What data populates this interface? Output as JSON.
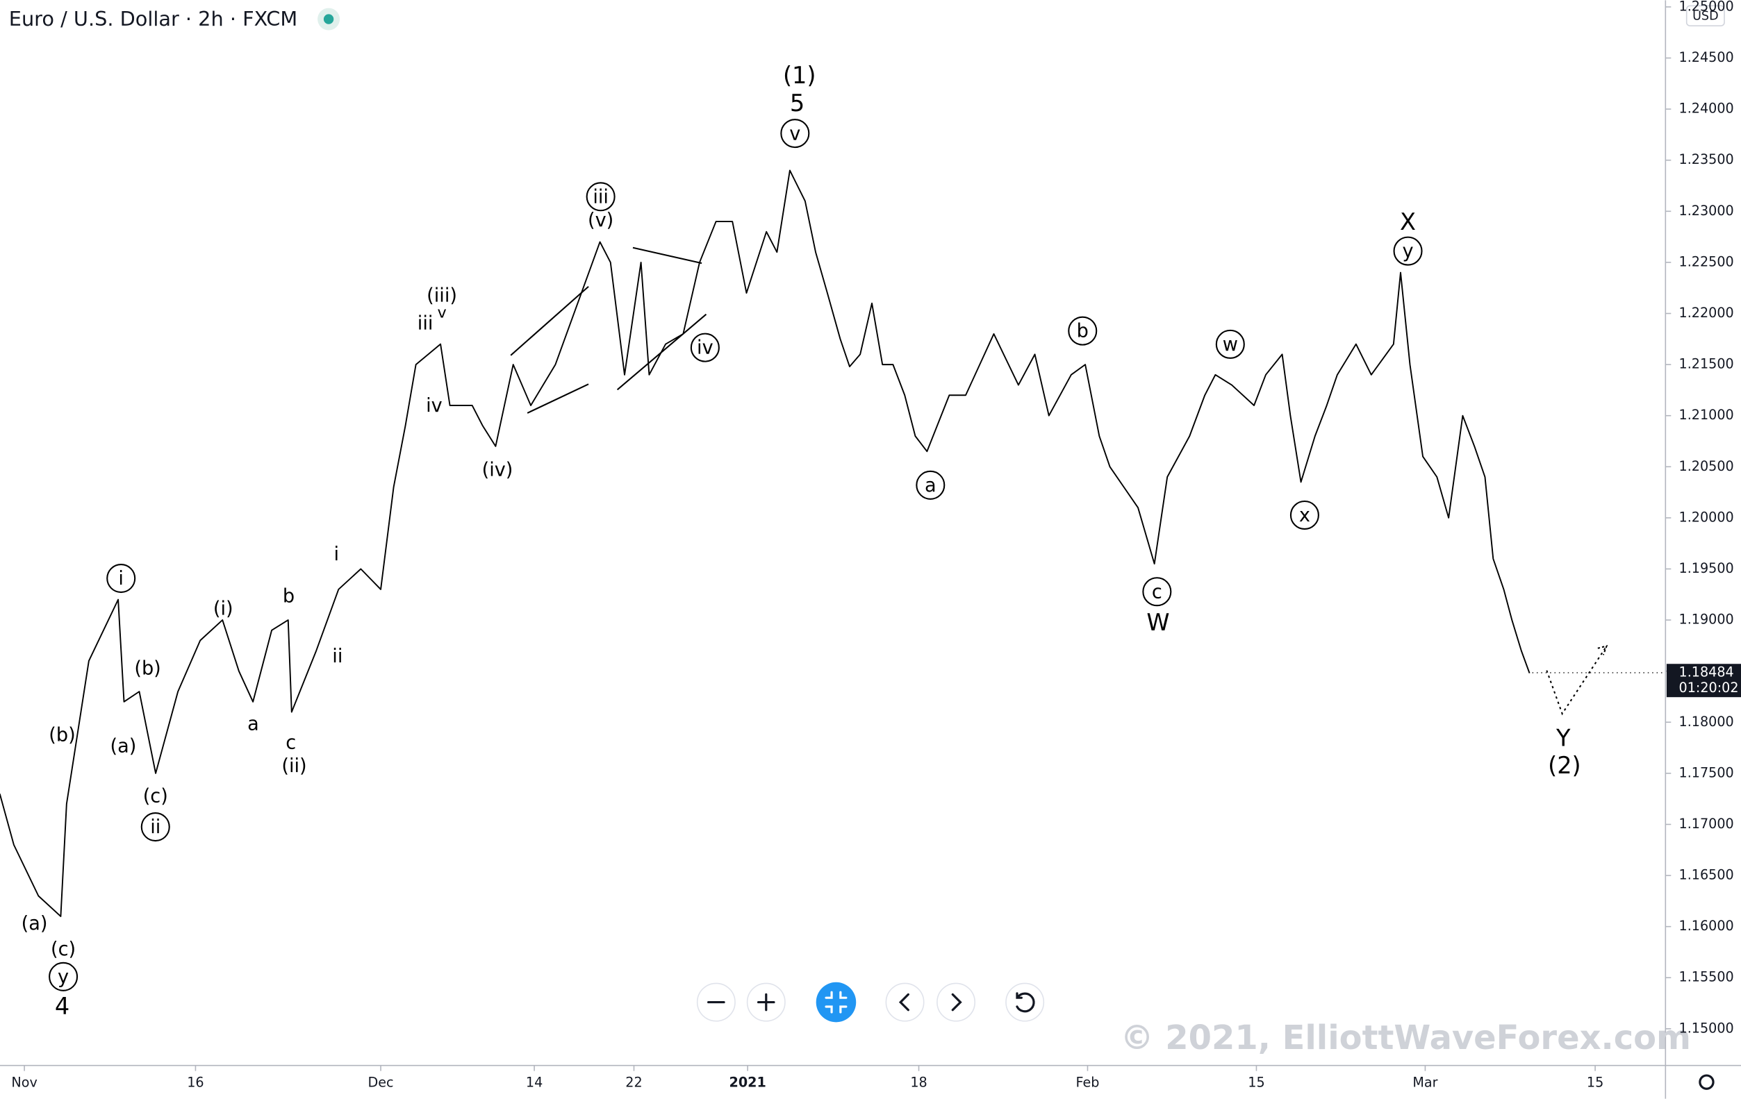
{
  "header": {
    "title": "Euro / U.S. Dollar · 2h · FXCM",
    "currency": "USD"
  },
  "chart_data": {
    "type": "line",
    "x": [
      -1.1,
      0.1,
      2.2,
      4.1,
      4.6,
      6.5,
      9.0,
      9.5,
      10.8,
      12.2,
      14.1,
      16.0,
      17.9,
      19.3,
      20.5,
      22.1,
      23.5,
      23.8,
      25.9,
      27.8,
      29.7,
      31.4,
      32.5,
      33.5,
      34.4,
      36.5,
      37.3,
      39.2,
      40.1,
      41.2,
      42.7,
      44.2,
      46.3,
      48.2,
      50.1,
      51.0,
      52.2,
      53.6,
      54.3,
      55.7,
      57.2,
      58.6,
      60.0,
      61.4,
      62.6,
      64.3,
      65.2,
      66.3,
      67.6,
      68.5,
      69.5,
      70.6,
      71.4,
      72.3,
      73.3,
      74.2,
      75.1,
      76.1,
      77.0,
      78.0,
      79.9,
      81.3,
      83.7,
      85.8,
      87.2,
      88.4,
      90.3,
      91.5,
      92.7,
      93.6,
      94.8,
      96.0,
      97.4,
      98.5,
      100.4,
      101.7,
      102.6,
      104.0,
      105.9,
      106.9,
      108.3,
      109.0,
      109.9,
      111.1,
      112.1,
      113.0,
      114.6,
      115.9,
      117.8,
      118.4,
      119.2,
      120.3,
      121.5,
      122.5,
      123.7,
      124.7,
      125.6,
      126.3,
      127.2,
      127.9,
      128.7,
      129.4
    ],
    "series": [
      {
        "color": "#000000",
        "values": [
          1.173,
          1.168,
          1.163,
          1.161,
          1.172,
          1.186,
          1.192,
          1.182,
          1.183,
          1.175,
          1.183,
          1.188,
          1.19,
          1.185,
          1.182,
          1.189,
          1.19,
          1.181,
          1.187,
          1.193,
          1.195,
          1.193,
          1.203,
          1.209,
          1.215,
          1.217,
          1.211,
          1.211,
          1.209,
          1.207,
          1.215,
          1.211,
          1.215,
          1.221,
          1.227,
          1.225,
          1.214,
          1.225,
          1.214,
          1.217,
          1.218,
          1.225,
          1.229,
          1.229,
          1.222,
          1.228,
          1.226,
          1.234,
          1.231,
          1.226,
          1.222,
          1.2175,
          1.2148,
          1.216,
          1.221,
          1.215,
          1.215,
          1.212,
          1.208,
          1.2065,
          1.212,
          1.212,
          1.218,
          1.213,
          1.216,
          1.21,
          1.214,
          1.215,
          1.208,
          1.205,
          1.203,
          1.201,
          1.1955,
          1.204,
          1.208,
          1.212,
          1.214,
          1.213,
          1.211,
          1.214,
          1.216,
          1.21,
          1.2035,
          1.208,
          1.211,
          1.214,
          1.217,
          1.214,
          1.217,
          1.224,
          1.215,
          1.206,
          1.204,
          1.2,
          1.21,
          1.207,
          1.204,
          1.196,
          1.193,
          1.19,
          1.187,
          1.1848
        ]
      }
    ],
    "xlim": [
      -1.08,
      141
    ],
    "xticks": [
      {
        "value": 1,
        "label": "Nov"
      },
      {
        "value": 15.6,
        "label": "16"
      },
      {
        "value": 31.4,
        "label": "Dec"
      },
      {
        "value": 44.5,
        "label": "14"
      },
      {
        "value": 53.0,
        "label": "22"
      },
      {
        "value": 62.7,
        "label": "2021"
      },
      {
        "value": 77.3,
        "label": "18"
      },
      {
        "value": 91.7,
        "label": "Feb"
      },
      {
        "value": 106.1,
        "label": "15"
      },
      {
        "value": 120.5,
        "label": "Mar"
      },
      {
        "value": 135,
        "label": "15"
      }
    ],
    "ylim": [
      1.14641,
      1.25065
    ],
    "yticks": [
      {
        "value": 1.15,
        "label": "1.15000"
      },
      {
        "value": 1.155,
        "label": "1.15500"
      },
      {
        "value": 1.16,
        "label": "1.16000"
      },
      {
        "value": 1.165,
        "label": "1.16500"
      },
      {
        "value": 1.17,
        "label": "1.17000"
      },
      {
        "value": 1.175,
        "label": "1.17500"
      },
      {
        "value": 1.18,
        "label": "1.18000"
      },
      {
        "value": 1.185,
        "label": "1.18500"
      },
      {
        "value": 1.19,
        "label": "1.19000"
      },
      {
        "value": 1.195,
        "label": "1.19500"
      },
      {
        "value": 1.2,
        "label": "1.20000"
      },
      {
        "value": 1.205,
        "label": "1.20500"
      },
      {
        "value": 1.21,
        "label": "1.21000"
      },
      {
        "value": 1.215,
        "label": "1.21500"
      },
      {
        "value": 1.22,
        "label": "1.22000"
      },
      {
        "value": 1.225,
        "label": "1.22500"
      },
      {
        "value": 1.23,
        "label": "1.23000"
      },
      {
        "value": 1.235,
        "label": "1.23500"
      },
      {
        "value": 1.24,
        "label": "1.24000"
      },
      {
        "value": 1.245,
        "label": "1.24500"
      },
      {
        "value": 1.25,
        "label": "1.25000"
      }
    ],
    "current_price": {
      "value": 1.18484,
      "label": "1.18484"
    },
    "countdown": "01:20:02",
    "annotations": [
      "(1)",
      "5",
      "v",
      "iii",
      "(v)",
      "(iii)",
      "v",
      "iii",
      "iv",
      "(iv)",
      "iv",
      "i",
      "(i)",
      "b",
      "i",
      "ii",
      "(b)",
      "(b)",
      "(a)",
      "a",
      "c",
      "(ii)",
      "(c)",
      "ii",
      "(a)",
      "(c)",
      "y",
      "4",
      "a",
      "b",
      "c",
      "W",
      "w",
      "x",
      "X",
      "y",
      "Y",
      "(2)"
    ],
    "watermark": "© 2021, ElliottWaveForex.com"
  }
}
